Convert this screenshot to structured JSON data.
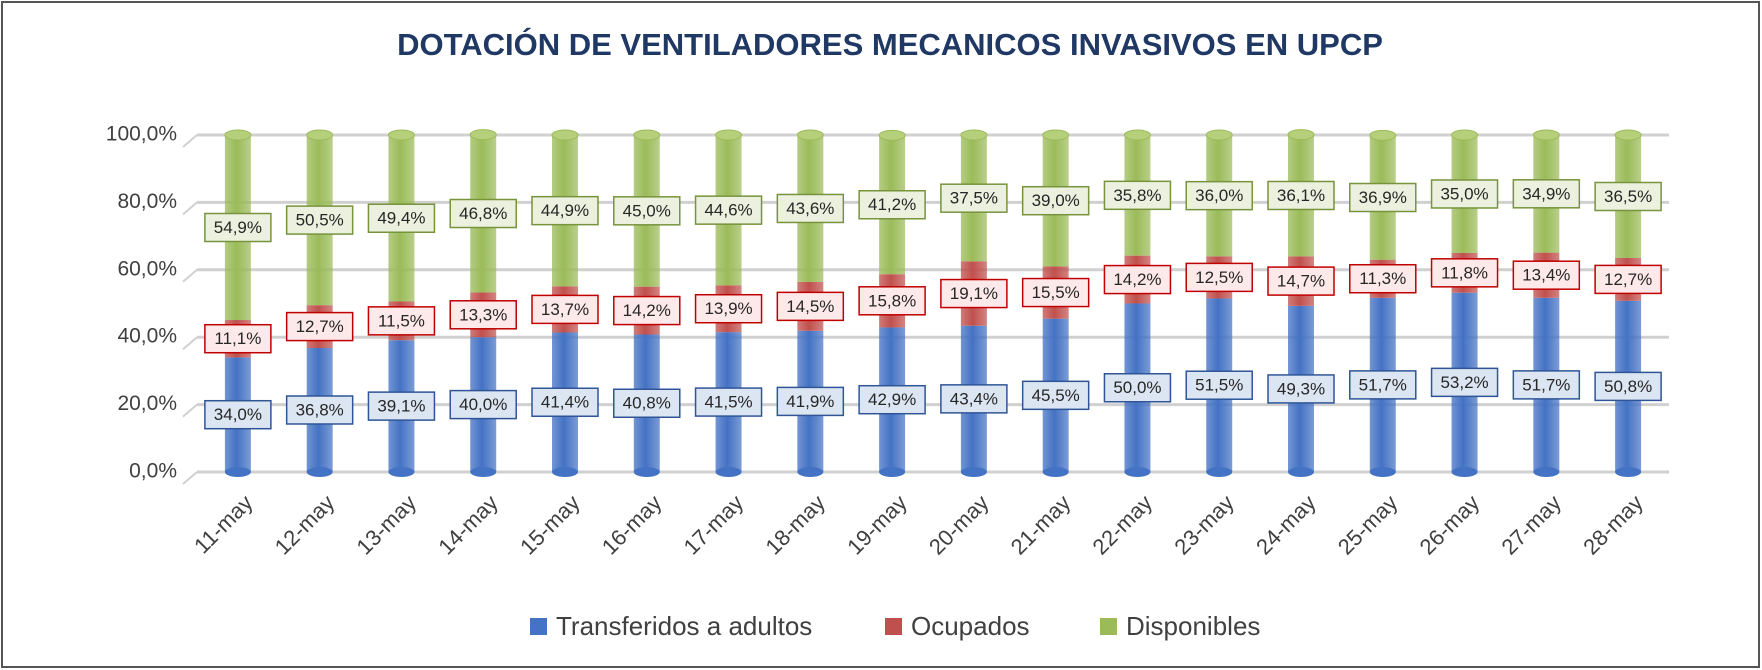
{
  "chart_data": {
    "type": "stacked_bar",
    "title": "DOTACIÓN DE VENTILADORES MECANICOS INVASIVOS EN UPCP",
    "categories": [
      "11-may",
      "12-may",
      "13-may",
      "14-may",
      "15-may",
      "16-may",
      "17-may",
      "18-may",
      "19-may",
      "20-may",
      "21-may",
      "22-may",
      "23-may",
      "24-may",
      "25-may",
      "26-may",
      "27-may",
      "28-may"
    ],
    "series": [
      {
        "name": "Transferidos a adultos",
        "color": "#4472c4",
        "values": [
          34.0,
          36.8,
          39.1,
          40.0,
          41.4,
          40.8,
          41.5,
          41.9,
          42.9,
          43.4,
          45.5,
          50.0,
          51.5,
          49.3,
          51.7,
          53.2,
          51.7,
          50.8
        ],
        "value_labels": [
          "34,0%",
          "36,8%",
          "39,1%",
          "40,0%",
          "41,4%",
          "40,8%",
          "41,5%",
          "41,9%",
          "42,9%",
          "43,4%",
          "45,5%",
          "50,0%",
          "51,5%",
          "49,3%",
          "51,7%",
          "53,2%",
          "51,7%",
          "50,8%"
        ]
      },
      {
        "name": "Ocupados",
        "color": "#c0504d",
        "values": [
          11.1,
          12.7,
          11.5,
          13.3,
          13.7,
          14.2,
          13.9,
          14.5,
          15.8,
          19.1,
          15.5,
          14.2,
          12.5,
          14.7,
          11.3,
          11.8,
          13.4,
          12.7
        ],
        "value_labels": [
          "11,1%",
          "12,7%",
          "11,5%",
          "13,3%",
          "13,7%",
          "14,2%",
          "13,9%",
          "14,5%",
          "15,8%",
          "19,1%",
          "15,5%",
          "14,2%",
          "12,5%",
          "14,7%",
          "11,3%",
          "11,8%",
          "13,4%",
          "12,7%"
        ]
      },
      {
        "name": "Disponibles",
        "color": "#9bbb59",
        "values": [
          54.9,
          50.5,
          49.4,
          46.8,
          44.9,
          45.0,
          44.6,
          43.6,
          41.2,
          37.5,
          39.0,
          35.8,
          36.0,
          36.1,
          36.9,
          35.0,
          34.9,
          36.5
        ],
        "value_labels": [
          "54,9%",
          "50,5%",
          "49,4%",
          "46,8%",
          "44,9%",
          "45,0%",
          "44,6%",
          "43,6%",
          "41,2%",
          "37,5%",
          "39,0%",
          "35,8%",
          "36,0%",
          "36,1%",
          "36,9%",
          "35,0%",
          "34,9%",
          "36,5%"
        ]
      }
    ],
    "ylim": [
      0,
      100
    ],
    "yticks": [
      {
        "value": 0,
        "label": "0,0%"
      },
      {
        "value": 20,
        "label": "20,0%"
      },
      {
        "value": 40,
        "label": "40,0%"
      },
      {
        "value": 60,
        "label": "60,0%"
      },
      {
        "value": 80,
        "label": "80,0%"
      },
      {
        "value": 100,
        "label": "100,0%"
      }
    ],
    "grid": true,
    "legend": "bottom"
  }
}
